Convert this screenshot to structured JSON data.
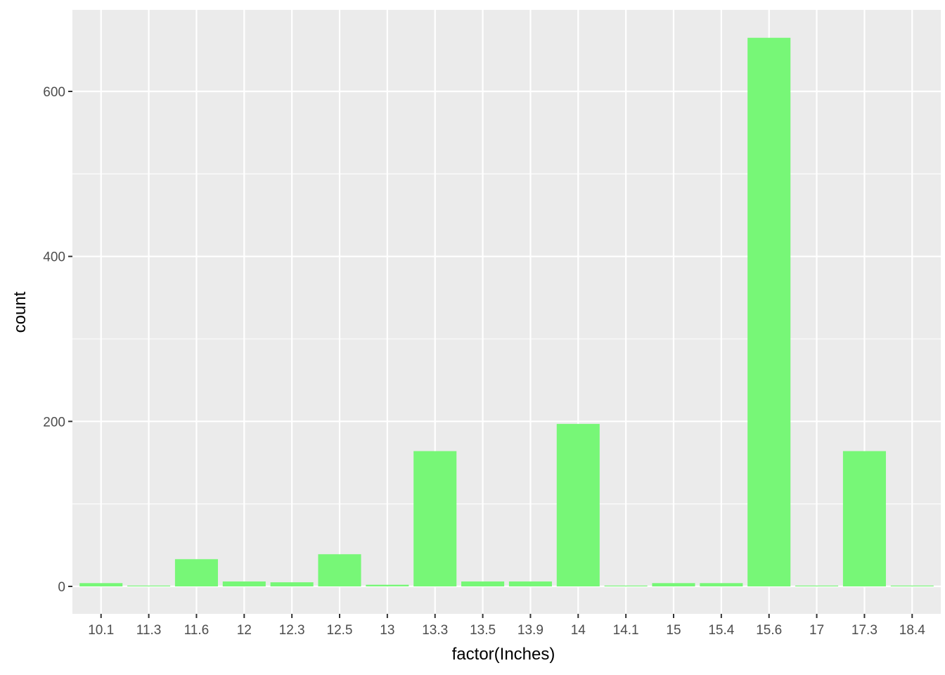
{
  "chart_data": {
    "type": "bar",
    "title": "",
    "xlabel": "factor(Inches)",
    "ylabel": "count",
    "categories": [
      "10.1",
      "11.3",
      "11.6",
      "12",
      "12.3",
      "12.5",
      "13",
      "13.3",
      "13.5",
      "13.9",
      "14",
      "14.1",
      "15",
      "15.4",
      "15.6",
      "17",
      "17.3",
      "18.4"
    ],
    "values": [
      4,
      1,
      33,
      6,
      5,
      39,
      2,
      164,
      6,
      6,
      197,
      1,
      4,
      4,
      665,
      1,
      164,
      1
    ],
    "ylim": [
      -33,
      700
    ],
    "yticks": [
      0,
      200,
      400,
      600
    ],
    "y_minor_ticks": [
      100,
      300,
      500
    ],
    "grid": true,
    "legend": "none",
    "colors": {
      "bar_fill": "#77F777",
      "panel_background": "#EBEBEB",
      "grid_line": "#FFFFFF",
      "tick_text": "#4D4D4D",
      "tick_mark": "#333333"
    }
  }
}
